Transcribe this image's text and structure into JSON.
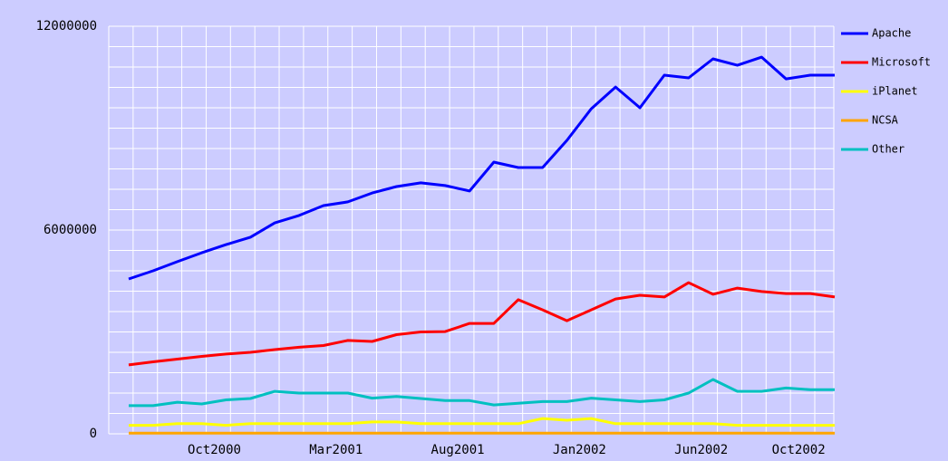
{
  "chart_data": {
    "type": "line",
    "categories": [
      null,
      null,
      null,
      null,
      "Oct2000",
      null,
      null,
      null,
      null,
      "Mar2001",
      null,
      null,
      null,
      null,
      "Aug2001",
      null,
      null,
      null,
      null,
      "Jan2002",
      null,
      null,
      null,
      null,
      "Jun2002",
      null,
      null,
      null,
      "Oct2002",
      null
    ],
    "series": [
      {
        "name": "Apache",
        "color": "#0000ff",
        "values": [
          4560000,
          4800000,
          5070000,
          5330000,
          5570000,
          5790000,
          6210000,
          6430000,
          6720000,
          6830000,
          7090000,
          7280000,
          7390000,
          7310000,
          7150000,
          8000000,
          7840000,
          7840000,
          8640000,
          9570000,
          10210000,
          9600000,
          10560000,
          10480000,
          11040000,
          10850000,
          11090000,
          10450000,
          10560000,
          10560000
        ]
      },
      {
        "name": "Microsoft",
        "color": "#ff0000",
        "values": [
          2030000,
          2120000,
          2200000,
          2280000,
          2350000,
          2400000,
          2480000,
          2550000,
          2600000,
          2750000,
          2720000,
          2920000,
          3000000,
          3010000,
          3250000,
          3250000,
          3950000,
          3650000,
          3330000,
          3650000,
          3970000,
          4080000,
          4030000,
          4450000,
          4110000,
          4290000,
          4190000,
          4130000,
          4130000,
          4030000
        ]
      },
      {
        "name": "iPlanet",
        "color": "#ffff00",
        "values": [
          250000,
          250000,
          300000,
          300000,
          250000,
          300000,
          300000,
          300000,
          300000,
          300000,
          350000,
          350000,
          300000,
          300000,
          300000,
          300000,
          300000,
          450000,
          400000,
          450000,
          300000,
          300000,
          300000,
          300000,
          300000,
          250000,
          250000,
          250000,
          250000,
          250000
        ]
      },
      {
        "name": "NCSA",
        "color": "#ffa500",
        "values": [
          20000,
          20000,
          20000,
          20000,
          20000,
          20000,
          20000,
          20000,
          20000,
          20000,
          20000,
          20000,
          20000,
          20000,
          20000,
          20000,
          20000,
          20000,
          20000,
          20000,
          20000,
          20000,
          20000,
          20000,
          20000,
          20000,
          20000,
          20000,
          20000,
          20000
        ]
      },
      {
        "name": "Other",
        "color": "#00c0c0",
        "values": [
          830000,
          830000,
          930000,
          880000,
          1000000,
          1040000,
          1250000,
          1200000,
          1200000,
          1200000,
          1050000,
          1100000,
          1040000,
          980000,
          980000,
          850000,
          900000,
          950000,
          950000,
          1050000,
          1000000,
          950000,
          1000000,
          1200000,
          1600000,
          1250000,
          1250000,
          1350000,
          1300000,
          1300000
        ]
      }
    ],
    "ylim": [
      0,
      12000000
    ],
    "yticks": [
      0,
      6000000,
      12000000
    ],
    "minor_yticks": [
      600000,
      1200000,
      1800000,
      2400000,
      3000000,
      3600000,
      4200000,
      4800000,
      5400000,
      6600000,
      7200000,
      7800000,
      8400000,
      9000000,
      9600000,
      10200000,
      10800000,
      11400000
    ],
    "grid": true,
    "legend": "right"
  }
}
